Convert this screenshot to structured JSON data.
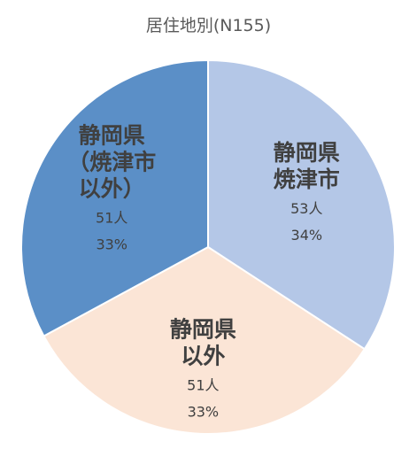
{
  "chart_data": {
    "type": "pie",
    "title": "居住地別(N155)",
    "start_angle_deg": 0,
    "direction": "clockwise",
    "slices": [
      {
        "label_lines": [
          "静岡県",
          "焼津市"
        ],
        "count_label": "53人",
        "percent_label": "34%",
        "value": 53,
        "color": "#B4C7E7"
      },
      {
        "label_lines": [
          "静岡県",
          "以外"
        ],
        "count_label": "51人",
        "percent_label": "33%",
        "value": 51,
        "color": "#FBE5D6"
      },
      {
        "label_lines": [
          "静岡県",
          "（焼津市",
          "以外）"
        ],
        "count_label": "51人",
        "percent_label": "33%",
        "value": 51,
        "color": "#5B8FC7"
      }
    ],
    "legend": "none",
    "border_color": "#ffffff"
  }
}
